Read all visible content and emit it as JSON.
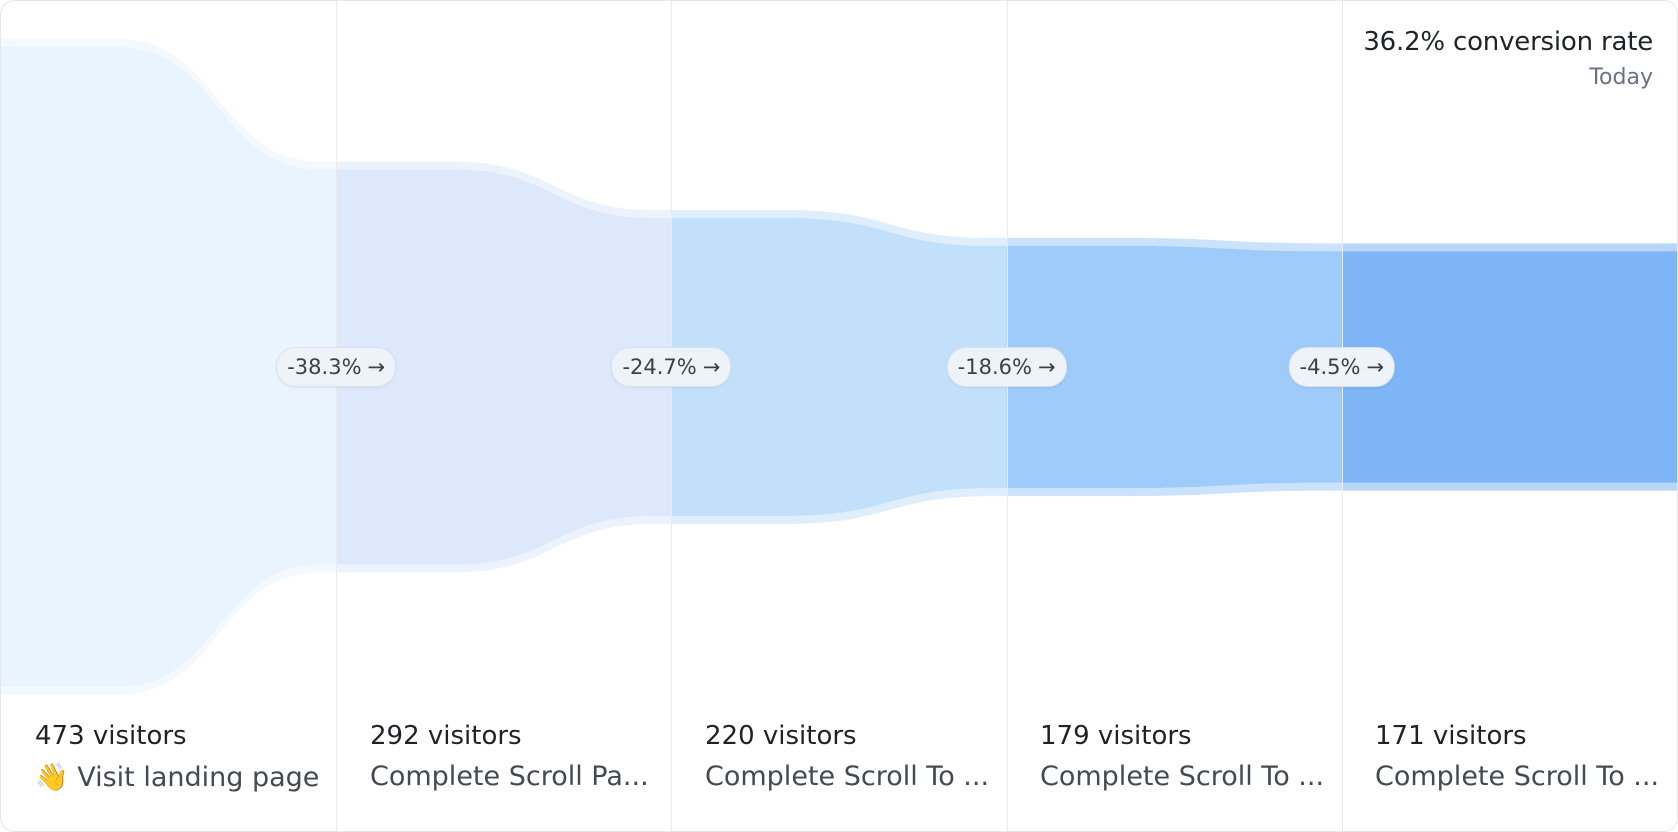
{
  "summary": {
    "conversion_text": "36.2% conversion rate",
    "period": "Today"
  },
  "chart_data": {
    "type": "funnel",
    "steps": [
      {
        "visitors": 473,
        "count_label": "473 visitors",
        "name": "👋 Visit landing page"
      },
      {
        "visitors": 292,
        "count_label": "292 visitors",
        "name": "Complete Scroll Pa..."
      },
      {
        "visitors": 220,
        "count_label": "220 visitors",
        "name": "Complete Scroll To ..."
      },
      {
        "visitors": 179,
        "count_label": "179 visitors",
        "name": "Complete Scroll To ..."
      },
      {
        "visitors": 171,
        "count_label": "171 visitors",
        "name": "Complete Scroll To ..."
      }
    ],
    "dropoffs": [
      "-38.3%",
      "-24.7%",
      "-18.6%",
      "-4.5%"
    ],
    "colors": [
      "#eaf4fe",
      "#dde9fb",
      "#c3e0fb",
      "#9ecbf9",
      "#7db5f6"
    ]
  }
}
